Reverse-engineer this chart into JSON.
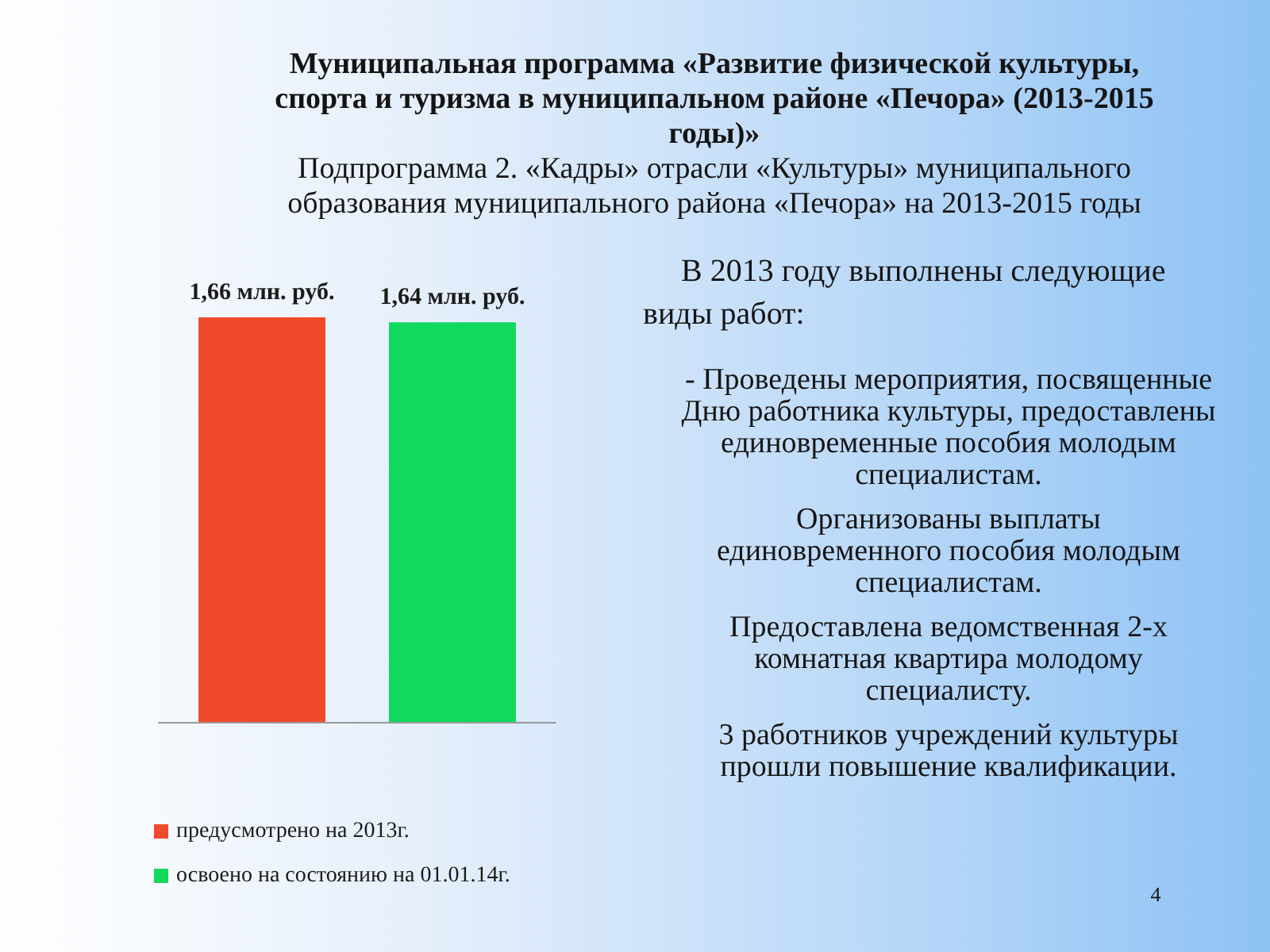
{
  "chart_data": {
    "type": "bar",
    "title": "Муниципальная программа «Развитие физической культуры, спорта и туризма в муниципальном районе «Печора» (2013-2015 годы)»",
    "subtitle": "Подпрограмма 2. «Кадры» отрасли «Культуры» муниципального образования муниципального района «Печора» на 2013-2015 годы",
    "categories": [
      null
    ],
    "series": [
      {
        "name": "предусмотрено на 2013г.",
        "color": "#f04a2c",
        "values": [
          1.66
        ],
        "value_labels": [
          "1,66 млн. руб."
        ]
      },
      {
        "name": "освоено на состоянию на 01.01.14г.",
        "color": "#12d85e",
        "values": [
          1.64
        ],
        "value_labels": [
          "1,64 млн. руб."
        ]
      }
    ],
    "legend": "bottom left",
    "grid": false,
    "tick_labels": false,
    "annotations": [
      "В 2013 году выполнены следующие виды работ:",
      "- Проведены мероприятия, посвященные Дню работника культуры, предоставлены единовременные пособия молодым специалистам.",
      "Организованы выплаты единовременного пособия молодым специалистам.",
      "Предоставлена ведомственная 2-х комнатная квартира молодому специалисту.",
      "3 работников учреждений культуры прошли повышение квалификации.",
      "4"
    ]
  }
}
